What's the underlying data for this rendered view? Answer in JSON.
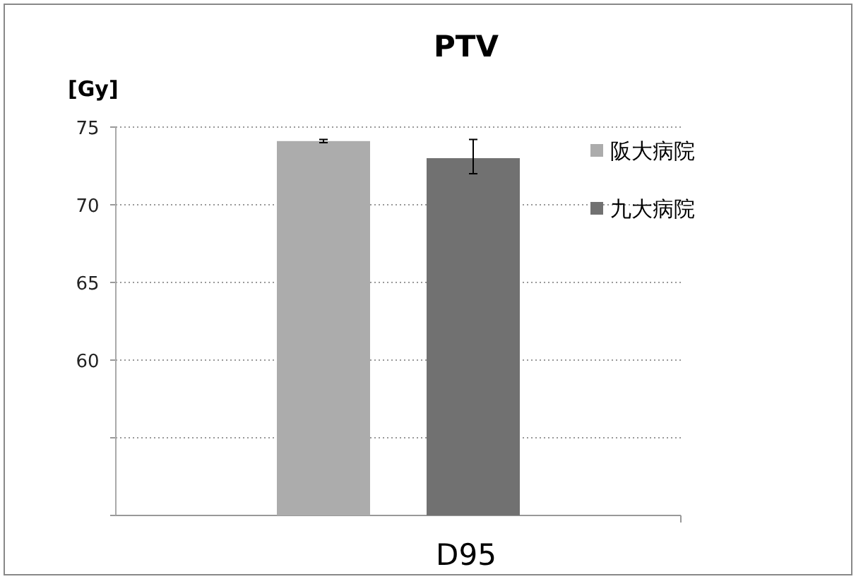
{
  "chart_data": {
    "type": "bar",
    "title": "PTV",
    "ylabel": "[Gy]",
    "xlabel": "D95",
    "categories": [
      null
    ],
    "series": [
      {
        "name": "阪大病院",
        "color": "#acacac",
        "values": [
          74.1
        ],
        "errors": [
          0.1
        ]
      },
      {
        "name": "九大病院",
        "color": "#717171",
        "values": [
          73.0
        ],
        "errors": [
          [
            72.0,
            74.2
          ]
        ]
      }
    ],
    "ylim": [
      50,
      75
    ],
    "yticks": [
      {
        "value": 50,
        "label": null
      },
      {
        "value": 55,
        "label": null
      },
      60,
      65,
      70,
      75
    ],
    "grid": "y",
    "legend": "right"
  }
}
